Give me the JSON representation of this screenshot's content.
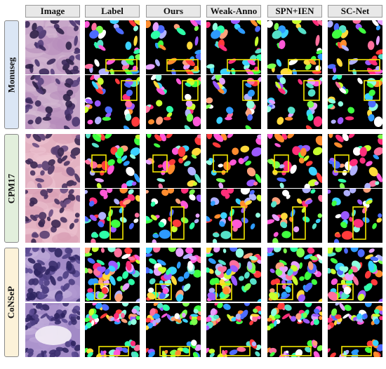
{
  "columns": [
    "Image",
    "Label",
    "Ours",
    "Weak-Anno",
    "SPN+IEN",
    "SC-Net"
  ],
  "groups": [
    {
      "name": "Monuseg",
      "color": "#dbe6f5"
    },
    {
      "name": "CPM17",
      "color": "#e2efdc"
    },
    {
      "name": "CoNSeP",
      "color": "#fcf2d9"
    }
  ],
  "colors": {
    "highlight_box": "#f2e600",
    "mask_background": "#000000",
    "header_fill": "#e8e8e8"
  },
  "rows": [
    {
      "group": "Monuseg",
      "tissue": "monuseg-he",
      "highlight_box": "bottom-center"
    },
    {
      "group": "Monuseg",
      "tissue": "monuseg-he",
      "highlight_box": "top-right"
    },
    {
      "group": "CPM17",
      "tissue": "cpm17-he",
      "highlight_box": "left-middle"
    },
    {
      "group": "CPM17",
      "tissue": "cpm17-he",
      "highlight_box": "center-tall"
    },
    {
      "group": "CoNSeP",
      "tissue": "consep-he",
      "highlight_box": "bottom-left"
    },
    {
      "group": "CoNSeP",
      "tissue": "consep-he",
      "highlight_box": "bottom-wide"
    }
  ]
}
